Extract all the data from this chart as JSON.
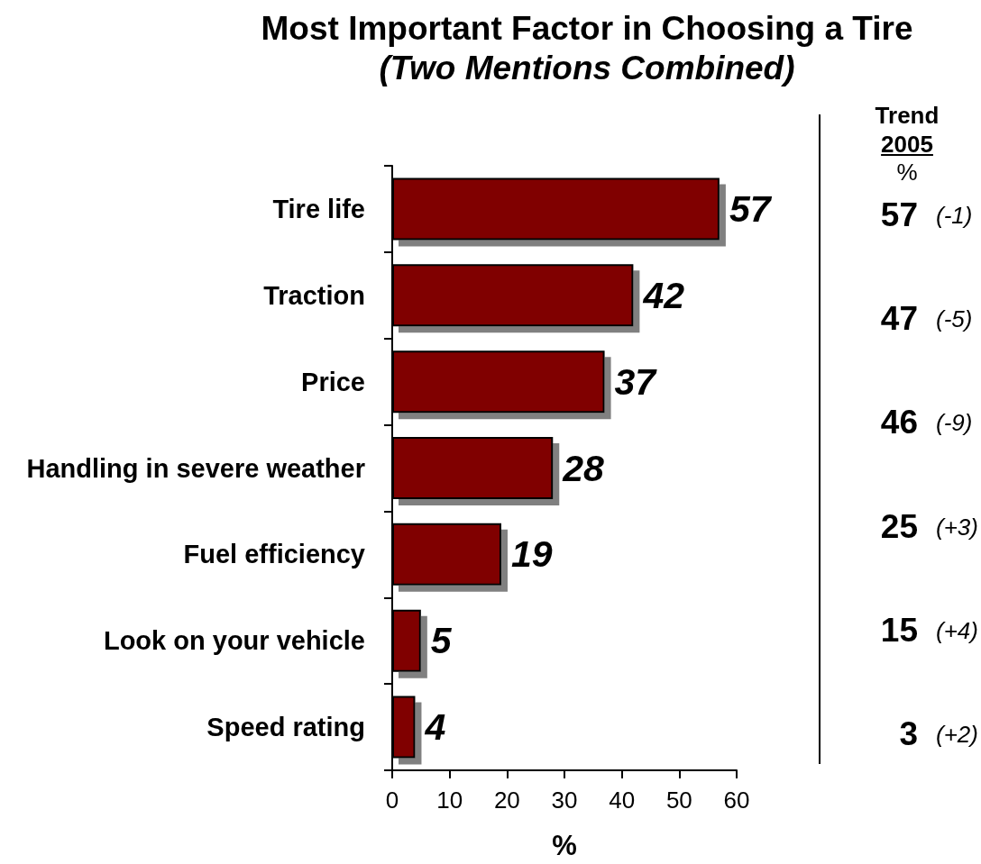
{
  "chart_data": {
    "type": "bar",
    "orientation": "horizontal",
    "title": "Most Important Factor in Choosing a Tire",
    "subtitle": "(Two Mentions Combined)",
    "xlabel": "%",
    "categories": [
      "Tire life",
      "Traction",
      "Price",
      "Handling in severe weather",
      "Fuel efficiency",
      "Look on your vehicle",
      "Speed rating"
    ],
    "values": [
      57,
      42,
      37,
      28,
      19,
      5,
      4
    ],
    "color": "#800000",
    "xlim": [
      0,
      60
    ],
    "xticks": [
      0,
      10,
      20,
      30,
      40,
      50,
      60
    ],
    "data_labels": true,
    "annotations": [
      "Trend",
      "2005",
      "%",
      "57 (-1)",
      "47 (-5)",
      "46 (-9)",
      "25 (+3)",
      "15 (+4)",
      "3 (+2)"
    ]
  }
}
